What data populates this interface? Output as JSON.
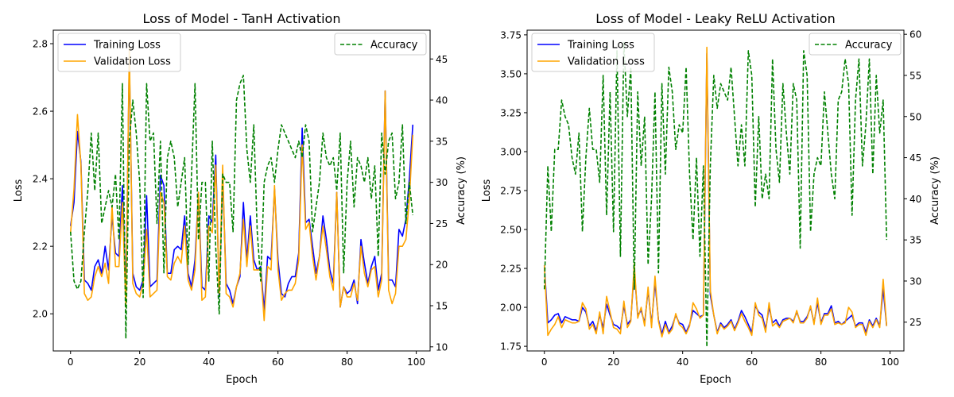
{
  "chart_data": [
    {
      "type": "line",
      "title": "Loss of Model - TanH Activation",
      "xlabel": "Epoch",
      "ylabel": "Loss",
      "y2label": "Accuracy (%)",
      "xlim": [
        -5,
        104
      ],
      "ylim": [
        1.89,
        2.84
      ],
      "y2lim": [
        9.5,
        48.5
      ],
      "xticks": [
        0,
        20,
        40,
        60,
        80,
        100
      ],
      "yticks": [
        2.0,
        2.2,
        2.4,
        2.6,
        2.8
      ],
      "yticklabels": [
        "2.0",
        "2.2",
        "2.4",
        "2.6",
        "2.8"
      ],
      "y2ticks": [
        10,
        15,
        20,
        25,
        30,
        35,
        40,
        45
      ],
      "grid": false,
      "legend_placement": "upper-left (loss), upper-right (accuracy)",
      "x": [
        0,
        1,
        2,
        3,
        4,
        5,
        6,
        7,
        8,
        9,
        10,
        11,
        12,
        13,
        14,
        15,
        16,
        17,
        18,
        19,
        20,
        21,
        22,
        23,
        24,
        25,
        26,
        27,
        28,
        29,
        30,
        31,
        32,
        33,
        34,
        35,
        36,
        37,
        38,
        39,
        40,
        41,
        42,
        43,
        44,
        45,
        46,
        47,
        48,
        49,
        50,
        51,
        52,
        53,
        54,
        55,
        56,
        57,
        58,
        59,
        60,
        61,
        62,
        63,
        64,
        65,
        66,
        67,
        68,
        69,
        70,
        71,
        72,
        73,
        74,
        75,
        76,
        77,
        78,
        79,
        80,
        81,
        82,
        83,
        84,
        85,
        86,
        87,
        88,
        89,
        90,
        91,
        92,
        93,
        94,
        95,
        96,
        97,
        98,
        99
      ],
      "series": [
        {
          "name": "Training Loss",
          "axis": "left",
          "color": "#0000ff",
          "style": "solid",
          "values": [
            2.26,
            2.33,
            2.54,
            2.45,
            2.1,
            2.09,
            2.07,
            2.14,
            2.16,
            2.12,
            2.2,
            2.13,
            2.29,
            2.18,
            2.17,
            2.38,
            2.05,
            2.76,
            2.12,
            2.08,
            2.07,
            2.1,
            2.35,
            2.08,
            2.09,
            2.1,
            2.41,
            2.38,
            2.12,
            2.12,
            2.19,
            2.2,
            2.19,
            2.29,
            2.12,
            2.08,
            2.16,
            2.36,
            2.08,
            2.07,
            2.29,
            2.27,
            2.47,
            2.05,
            2.41,
            2.09,
            2.07,
            2.03,
            2.08,
            2.11,
            2.33,
            2.16,
            2.29,
            2.16,
            2.13,
            2.14,
            2.01,
            2.17,
            2.16,
            2.37,
            2.16,
            2.06,
            2.05,
            2.09,
            2.11,
            2.11,
            2.18,
            2.55,
            2.27,
            2.28,
            2.2,
            2.12,
            2.17,
            2.29,
            2.22,
            2.13,
            2.09,
            2.36,
            2.02,
            2.08,
            2.06,
            2.07,
            2.1,
            2.03,
            2.22,
            2.15,
            2.09,
            2.14,
            2.17,
            2.07,
            2.12,
            2.66,
            2.1,
            2.1,
            2.08,
            2.25,
            2.23,
            2.28,
            2.4,
            2.56
          ]
        },
        {
          "name": "Validation Loss",
          "axis": "left",
          "color": "#ffa500",
          "style": "solid",
          "values": [
            2.24,
            2.37,
            2.59,
            2.44,
            2.06,
            2.04,
            2.05,
            2.11,
            2.14,
            2.11,
            2.15,
            2.09,
            2.32,
            2.14,
            2.14,
            2.33,
            2.02,
            2.79,
            2.09,
            2.06,
            2.05,
            2.09,
            2.25,
            2.05,
            2.06,
            2.07,
            2.36,
            2.33,
            2.11,
            2.1,
            2.15,
            2.17,
            2.15,
            2.26,
            2.1,
            2.07,
            2.13,
            2.36,
            2.04,
            2.05,
            2.26,
            2.24,
            2.44,
            2.06,
            2.44,
            2.06,
            2.05,
            2.02,
            2.08,
            2.12,
            2.28,
            2.14,
            2.26,
            2.13,
            2.13,
            2.13,
            1.98,
            2.14,
            2.13,
            2.38,
            2.13,
            2.04,
            2.06,
            2.07,
            2.07,
            2.09,
            2.16,
            2.5,
            2.25,
            2.27,
            2.17,
            2.1,
            2.17,
            2.26,
            2.19,
            2.11,
            2.07,
            2.36,
            2.02,
            2.08,
            2.05,
            2.05,
            2.09,
            2.04,
            2.2,
            2.12,
            2.08,
            2.13,
            2.14,
            2.05,
            2.1,
            2.66,
            2.07,
            2.03,
            2.06,
            2.2,
            2.2,
            2.22,
            2.34,
            2.53
          ]
        },
        {
          "name": "Accuracy",
          "axis": "right",
          "color": "#008000",
          "style": "dashed",
          "values": [
            24,
            18,
            17,
            18,
            24,
            29,
            36,
            29,
            36,
            25,
            27,
            29,
            27,
            31,
            23,
            42,
            11,
            35,
            40,
            36,
            30,
            16,
            42,
            35,
            36,
            25,
            35,
            19,
            33,
            35,
            33,
            27,
            30,
            33,
            20,
            31,
            42,
            23,
            30,
            30,
            18,
            35,
            22,
            14,
            31,
            30,
            30,
            24,
            40,
            42,
            43,
            34,
            30,
            37,
            24,
            18,
            30,
            32,
            33,
            30,
            34,
            37,
            36,
            35,
            34,
            33,
            35,
            33,
            37,
            35,
            24,
            27,
            30,
            36,
            33,
            32,
            33,
            29,
            36,
            19,
            30,
            35,
            27,
            33,
            32,
            30,
            33,
            28,
            32,
            21,
            36,
            31,
            35,
            36,
            28,
            30,
            37,
            25,
            30,
            26
          ]
        }
      ],
      "legends": [
        {
          "placement": "upper-left",
          "entries": [
            "Training Loss",
            "Validation Loss"
          ]
        },
        {
          "placement": "upper-right",
          "entries": [
            "Accuracy"
          ]
        }
      ]
    },
    {
      "type": "line",
      "title": "Loss of Model - Leaky ReLU Activation",
      "xlabel": "Epoch",
      "ylabel": "Loss",
      "y2label": "Accuracy (%)",
      "xlim": [
        -5,
        104
      ],
      "ylim": [
        1.72,
        3.78
      ],
      "y2lim": [
        21.5,
        60.5
      ],
      "xticks": [
        0,
        20,
        40,
        60,
        80,
        100
      ],
      "yticks": [
        1.75,
        2.0,
        2.25,
        2.5,
        2.75,
        3.0,
        3.25,
        3.5,
        3.75
      ],
      "yticklabels": [
        "1.75",
        "2.00",
        "2.25",
        "2.50",
        "2.75",
        "3.00",
        "3.25",
        "3.50",
        "3.75"
      ],
      "y2ticks": [
        25,
        30,
        35,
        40,
        45,
        50,
        55,
        60
      ],
      "grid": false,
      "legend_placement": "upper-left (loss), upper-right (accuracy)",
      "x": [
        0,
        1,
        2,
        3,
        4,
        5,
        6,
        7,
        8,
        9,
        10,
        11,
        12,
        13,
        14,
        15,
        16,
        17,
        18,
        19,
        20,
        21,
        22,
        23,
        24,
        25,
        26,
        27,
        28,
        29,
        30,
        31,
        32,
        33,
        34,
        35,
        36,
        37,
        38,
        39,
        40,
        41,
        42,
        43,
        44,
        45,
        46,
        47,
        48,
        49,
        50,
        51,
        52,
        53,
        54,
        55,
        56,
        57,
        58,
        59,
        60,
        61,
        62,
        63,
        64,
        65,
        66,
        67,
        68,
        69,
        70,
        71,
        72,
        73,
        74,
        75,
        76,
        77,
        78,
        79,
        80,
        81,
        82,
        83,
        84,
        85,
        86,
        87,
        88,
        89,
        90,
        91,
        92,
        93,
        94,
        95,
        96,
        97,
        98,
        99
      ],
      "series": [
        {
          "name": "Training Loss",
          "axis": "left",
          "color": "#0000ff",
          "style": "solid",
          "values": [
            2.27,
            1.9,
            1.92,
            1.95,
            1.96,
            1.9,
            1.94,
            1.93,
            1.92,
            1.92,
            1.91,
            2.0,
            1.97,
            1.88,
            1.91,
            1.85,
            1.95,
            1.87,
            2.02,
            1.95,
            1.89,
            1.88,
            1.86,
            2.01,
            1.89,
            1.92,
            2.24,
            1.95,
            1.98,
            1.9,
            2.11,
            1.89,
            2.16,
            1.92,
            1.83,
            1.91,
            1.84,
            1.88,
            1.95,
            1.9,
            1.89,
            1.84,
            1.89,
            1.98,
            1.96,
            1.94,
            1.95,
            3.63,
            2.08,
            1.95,
            1.84,
            1.9,
            1.87,
            1.89,
            1.92,
            1.86,
            1.91,
            1.98,
            1.94,
            1.89,
            1.84,
            2.01,
            1.97,
            1.95,
            1.86,
            2.0,
            1.9,
            1.92,
            1.88,
            1.92,
            1.93,
            1.93,
            1.91,
            1.97,
            1.91,
            1.91,
            1.94,
            2.0,
            1.9,
            2.03,
            1.9,
            1.96,
            1.96,
            2.01,
            1.9,
            1.91,
            1.89,
            1.91,
            1.93,
            1.95,
            1.88,
            1.9,
            1.9,
            1.84,
            1.92,
            1.88,
            1.93,
            1.88,
            2.12,
            1.88
          ]
        },
        {
          "name": "Validation Loss",
          "axis": "left",
          "color": "#ffa500",
          "style": "solid",
          "values": [
            2.27,
            1.82,
            1.86,
            1.89,
            1.94,
            1.87,
            1.92,
            1.91,
            1.9,
            1.9,
            1.91,
            2.03,
            1.99,
            1.86,
            1.89,
            1.83,
            1.97,
            1.83,
            2.07,
            1.97,
            1.87,
            1.86,
            1.83,
            2.04,
            1.87,
            1.91,
            2.28,
            1.93,
            2.0,
            1.88,
            2.13,
            1.87,
            2.2,
            1.91,
            1.81,
            1.89,
            1.83,
            1.86,
            1.96,
            1.89,
            1.87,
            1.83,
            1.88,
            2.03,
            1.99,
            1.93,
            1.95,
            3.67,
            2.11,
            1.95,
            1.83,
            1.89,
            1.86,
            1.88,
            1.91,
            1.85,
            1.9,
            1.96,
            1.91,
            1.87,
            1.82,
            2.03,
            1.95,
            1.93,
            1.84,
            2.03,
            1.88,
            1.9,
            1.87,
            1.91,
            1.92,
            1.93,
            1.9,
            1.98,
            1.9,
            1.9,
            1.93,
            2.01,
            1.89,
            2.06,
            1.89,
            1.95,
            1.95,
            1.99,
            1.89,
            1.9,
            1.89,
            1.9,
            2.0,
            1.97,
            1.87,
            1.89,
            1.89,
            1.82,
            1.91,
            1.87,
            1.92,
            1.87,
            2.18,
            1.88
          ]
        },
        {
          "name": "Accuracy",
          "axis": "right",
          "color": "#008000",
          "style": "dashed",
          "values": [
            29,
            44,
            36,
            46,
            46,
            52,
            50,
            49,
            45,
            43,
            48,
            36,
            45,
            51,
            46,
            46,
            42,
            55,
            38,
            53,
            36,
            58,
            33,
            59,
            50,
            56,
            29,
            53,
            44,
            50,
            32,
            40,
            53,
            31,
            54,
            43,
            56,
            53,
            46,
            49,
            48,
            56,
            43,
            35,
            45,
            33,
            44,
            22,
            44,
            55,
            51,
            54,
            53,
            52,
            56,
            50,
            44,
            49,
            44,
            58,
            55,
            39,
            50,
            40,
            43,
            40,
            57,
            46,
            42,
            54,
            48,
            43,
            54,
            52,
            34,
            58,
            55,
            36,
            43,
            45,
            44,
            53,
            48,
            43,
            40,
            52,
            53,
            57,
            54,
            38,
            52,
            57,
            44,
            49,
            57,
            43,
            55,
            48,
            52,
            35
          ]
        }
      ],
      "legends": [
        {
          "placement": "upper-left",
          "entries": [
            "Training Loss",
            "Validation Loss"
          ]
        },
        {
          "placement": "upper-right",
          "entries": [
            "Accuracy"
          ]
        }
      ]
    }
  ]
}
